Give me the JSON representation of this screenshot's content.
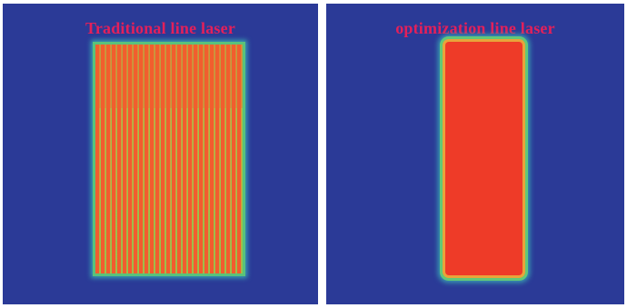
{
  "panels": {
    "left": {
      "title": "Traditional line laser"
    },
    "right": {
      "title": "optimization line laser"
    }
  },
  "colors": {
    "background": "#2b3a97",
    "title_text": "#e3205a",
    "laser_core": "#ee3b28",
    "laser_edge": "#62c878"
  }
}
